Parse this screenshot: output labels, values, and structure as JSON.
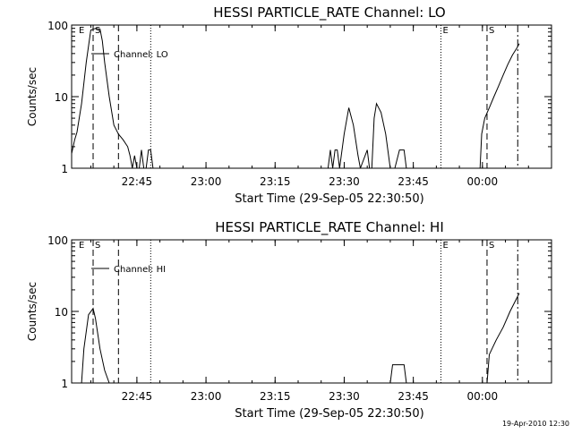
{
  "footer": {
    "timestamp": "19-Apr-2010 12:30"
  },
  "chart_data": [
    {
      "type": "line",
      "title": "HESSI PARTICLE_RATE Channel: LO",
      "xlabel": "Start Time (29-Sep-05 22:30:50)",
      "ylabel": "Counts/sec",
      "yscale": "log",
      "ylim": [
        1,
        100
      ],
      "xlim": [
        "22:30:50",
        "00:15:00"
      ],
      "x_ticks": [
        "22:45",
        "23:00",
        "23:15",
        "23:30",
        "23:45",
        "00:00"
      ],
      "y_ticks": [
        "1",
        "10",
        "100"
      ],
      "legend": "top-left",
      "series": [
        {
          "name": "Channel: LO",
          "x": [
            "22:30:50",
            "22:31:30",
            "22:32:00",
            "22:33:00",
            "22:34:00",
            "22:35:00",
            "22:36:00",
            "22:37:00",
            "22:37:30",
            "22:38:00",
            "22:39:00",
            "22:40:00",
            "22:41:00",
            "22:42:00",
            "22:43:00",
            "22:43:30",
            "22:44:00",
            "22:44:30",
            "22:45:00",
            "22:45:30",
            "22:46:00",
            "22:46:30",
            "22:47:00",
            "22:47:30",
            "22:48:00",
            "22:48:30",
            "23:26:30",
            "23:27:00",
            "23:27:30",
            "23:28:00",
            "23:28:30",
            "23:29:00",
            "23:30:00",
            "23:31:00",
            "23:32:00",
            "23:33:00",
            "23:33:30",
            "23:35:00",
            "23:35:30",
            "23:36:00",
            "23:36:30",
            "23:37:00",
            "23:38:00",
            "23:39:00",
            "23:40:00",
            "23:41:00",
            "23:42:00",
            "23:43:00",
            "23:43:30",
            "23:59:30",
            "23:59:50",
            "00:00:30",
            "00:01:30",
            "00:02:30",
            "00:03:30",
            "00:04:30",
            "00:05:30",
            "00:06:30",
            "00:07:30",
            "00:08:00"
          ],
          "y": [
            1.6,
            2.5,
            3.2,
            8,
            30,
            85,
            90,
            88,
            60,
            30,
            10,
            4,
            3,
            2.5,
            2,
            1.5,
            1,
            1.5,
            1,
            1,
            1.8,
            1,
            1,
            1.8,
            1.8,
            1,
            1,
            1.8,
            1,
            1.8,
            1.8,
            1,
            3,
            7,
            4,
            1.5,
            1,
            1.8,
            1,
            1,
            5,
            8,
            6,
            3,
            1,
            1,
            1.8,
            1.8,
            1,
            1,
            3,
            5,
            7,
            10,
            14,
            20,
            28,
            38,
            48,
            55
          ]
        }
      ],
      "annotations": [
        {
          "label": "E",
          "x": "22:32:00",
          "style": "text"
        },
        {
          "label": "S",
          "x": "22:35:30",
          "style": "dashed"
        },
        {
          "label": "",
          "x": "22:41:00",
          "style": "dashed"
        },
        {
          "label": "",
          "x": "22:48:00",
          "style": "dotted"
        },
        {
          "label": "E",
          "x": "23:51:00",
          "style": "dotted"
        },
        {
          "label": "S",
          "x": "00:01:00",
          "style": "dashed"
        },
        {
          "label": "",
          "x": "00:07:40",
          "style": "dashdot"
        }
      ]
    },
    {
      "type": "line",
      "title": "HESSI PARTICLE_RATE Channel: HI",
      "xlabel": "Start Time (29-Sep-05 22:30:50)",
      "ylabel": "Counts/sec",
      "yscale": "log",
      "ylim": [
        1,
        100
      ],
      "xlim": [
        "22:30:50",
        "00:15:00"
      ],
      "x_ticks": [
        "22:45",
        "23:00",
        "23:15",
        "23:30",
        "23:45",
        "00:00"
      ],
      "y_ticks": [
        "1",
        "10",
        "100"
      ],
      "legend": "top-left",
      "series": [
        {
          "name": "Channel: HI",
          "x": [
            "22:33:00",
            "22:33:30",
            "22:34:30",
            "22:35:30",
            "22:36:00",
            "22:37:00",
            "22:38:00",
            "22:39:00",
            "23:40:00",
            "23:40:30",
            "23:43:00",
            "23:43:30",
            "00:01:00",
            "00:01:30",
            "00:03:00",
            "00:04:30",
            "00:06:00",
            "00:08:00"
          ],
          "y": [
            1,
            3,
            9,
            11,
            8,
            3,
            1.5,
            1,
            1,
            1.8,
            1.8,
            1,
            1,
            2.5,
            4,
            6,
            10,
            18
          ]
        }
      ],
      "annotations": [
        {
          "label": "E",
          "x": "22:32:00",
          "style": "text"
        },
        {
          "label": "S",
          "x": "22:35:30",
          "style": "dashed"
        },
        {
          "label": "",
          "x": "22:41:00",
          "style": "dashed"
        },
        {
          "label": "",
          "x": "22:48:00",
          "style": "dotted"
        },
        {
          "label": "E",
          "x": "23:51:00",
          "style": "dotted"
        },
        {
          "label": "S",
          "x": "00:01:00",
          "style": "dashed"
        },
        {
          "label": "",
          "x": "00:07:40",
          "style": "dashdot"
        }
      ]
    }
  ]
}
